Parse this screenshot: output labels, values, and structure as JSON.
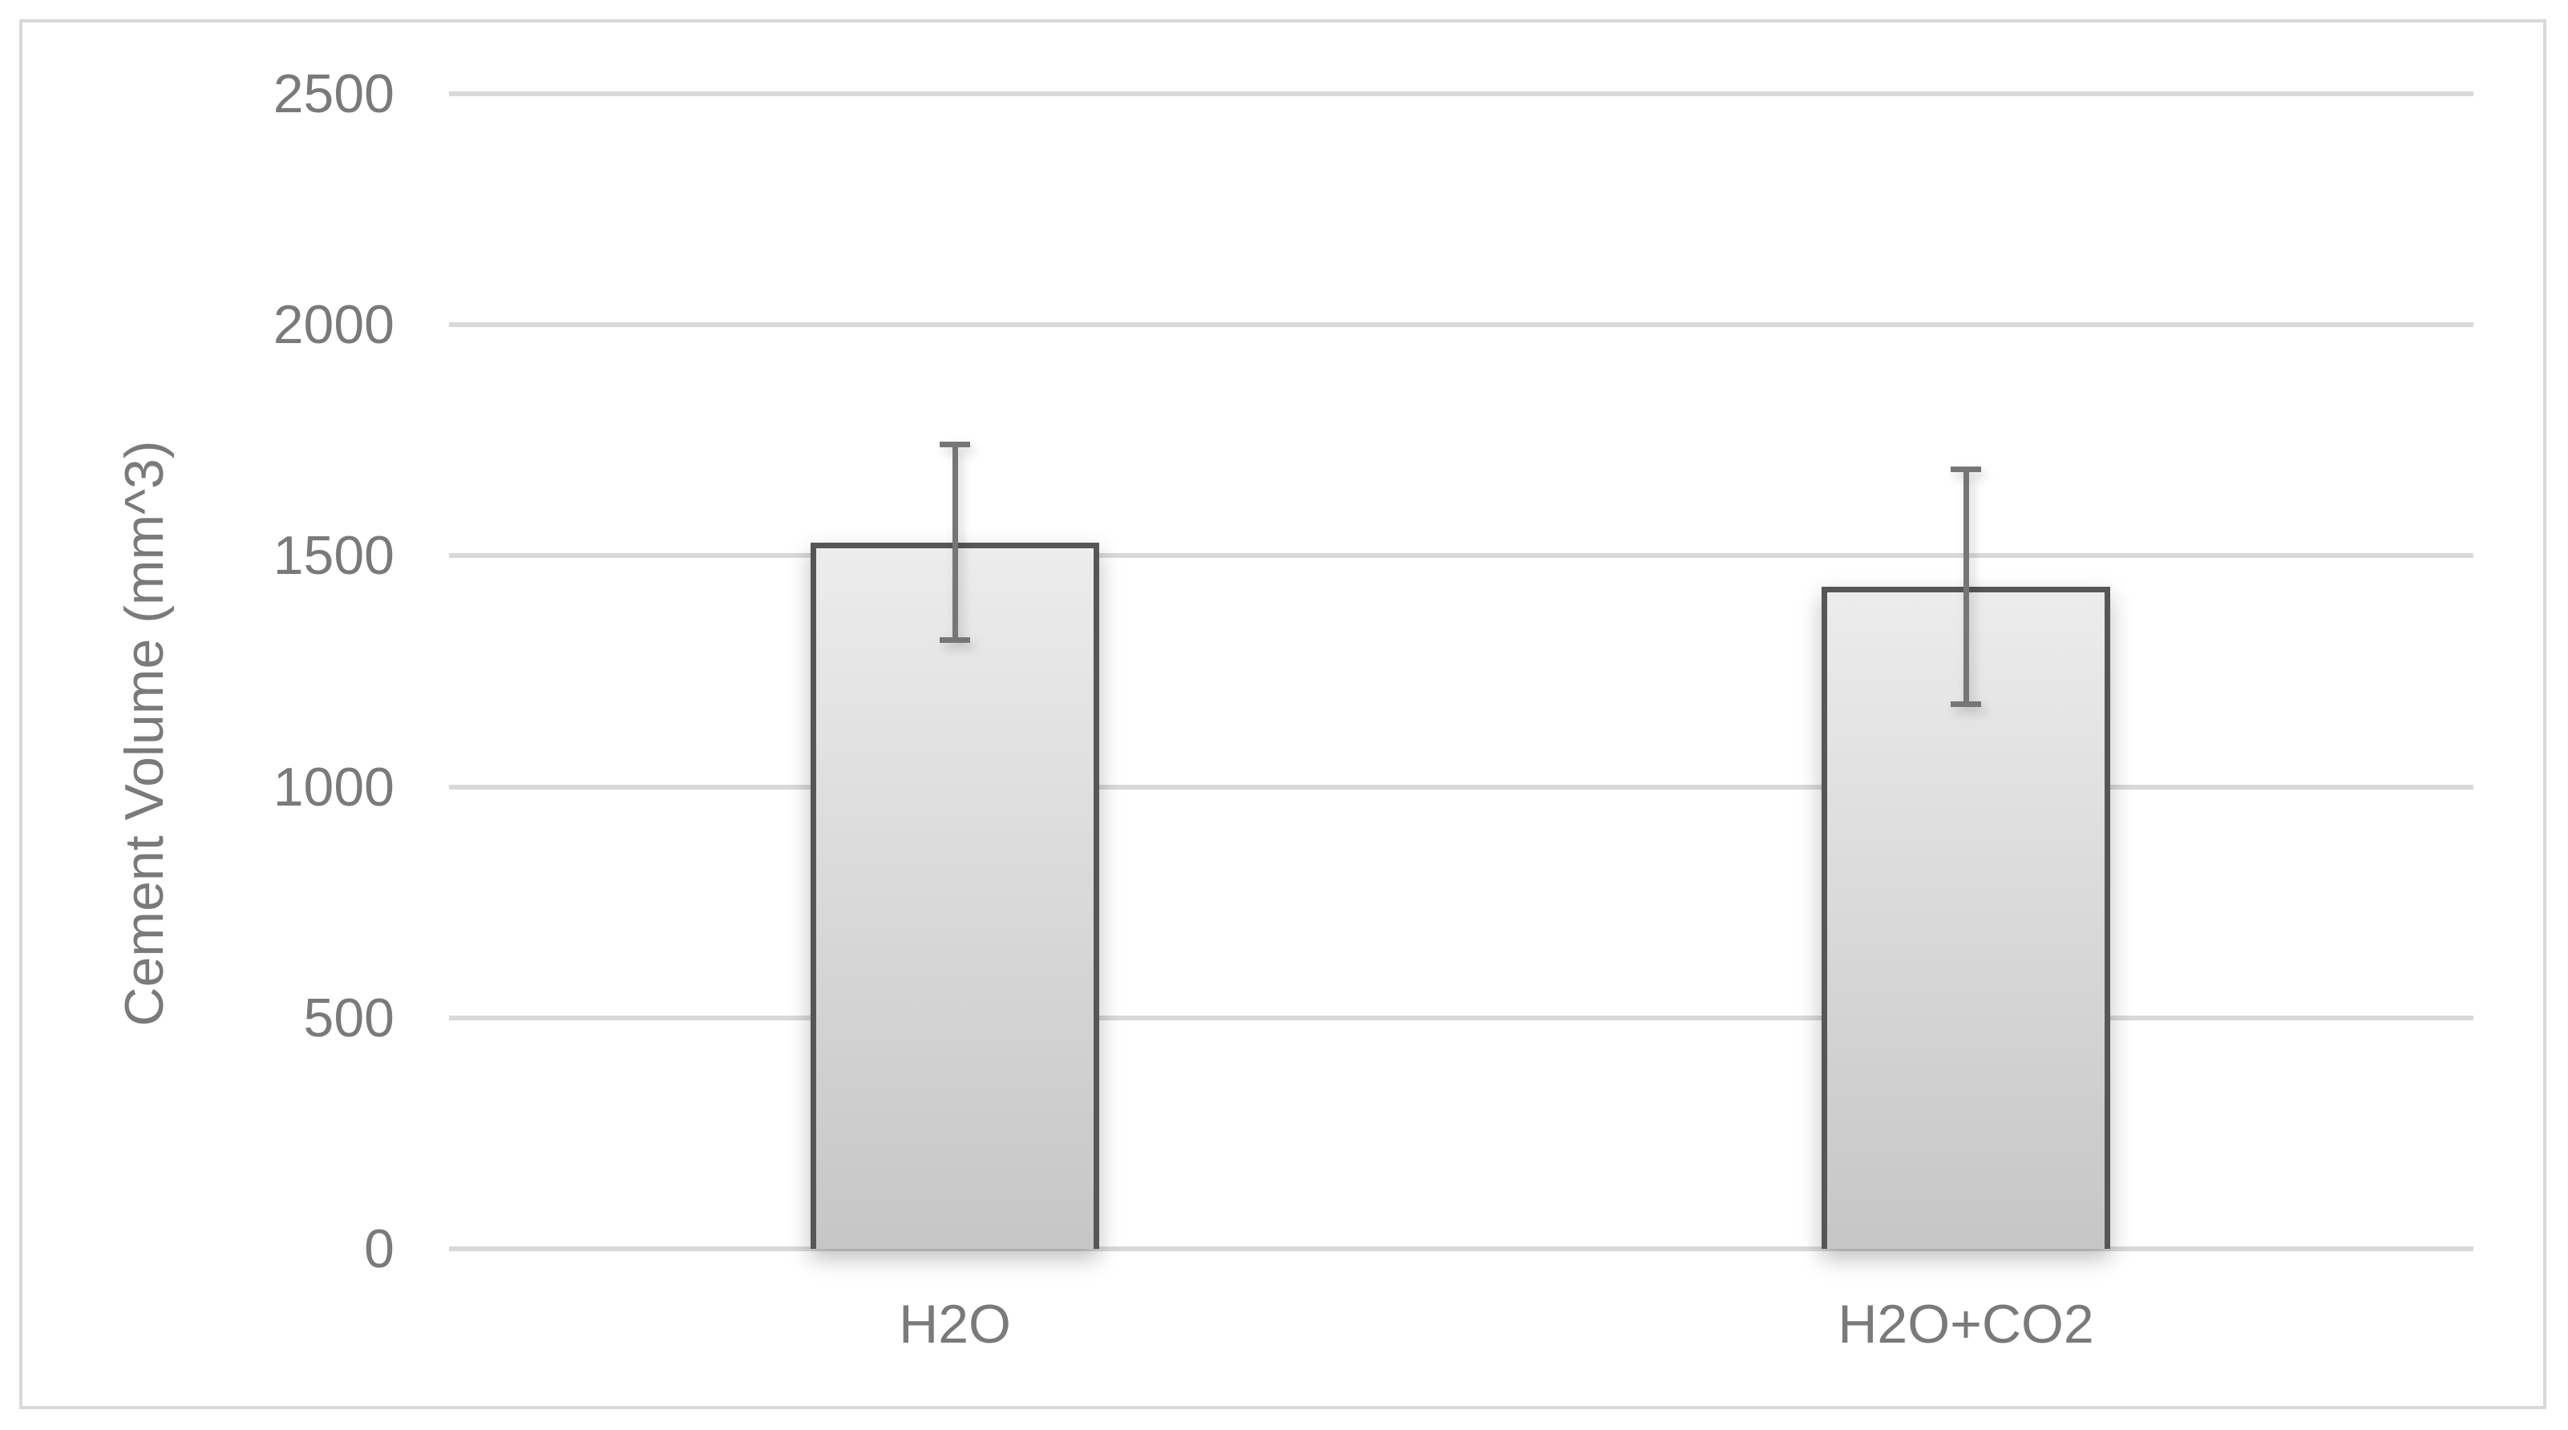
{
  "chart_data": {
    "type": "bar",
    "title": "",
    "xlabel": "",
    "ylabel": "Cement Volume (mm^3)",
    "categories": [
      "H2O",
      "H2O+CO2"
    ],
    "series": [
      {
        "name": "Cement Volume",
        "values": [
          1529,
          1433
        ],
        "error_bars": [
          218,
          261
        ]
      }
    ],
    "ylim": [
      0,
      2500
    ],
    "yticks": [
      0,
      500,
      1000,
      1500,
      2000,
      2500
    ],
    "grid": "horizontal",
    "legend": "none",
    "colors": {
      "background": "#ffffff",
      "chart_border": "#d9d9d9",
      "gridline": "#d9d9d9",
      "axis_text": "#7a7a7a",
      "bar_fill_top": "#ececec",
      "bar_fill_bottom": "#c6c6c6",
      "bar_border": "#565656",
      "error_bar": "#767676"
    }
  }
}
